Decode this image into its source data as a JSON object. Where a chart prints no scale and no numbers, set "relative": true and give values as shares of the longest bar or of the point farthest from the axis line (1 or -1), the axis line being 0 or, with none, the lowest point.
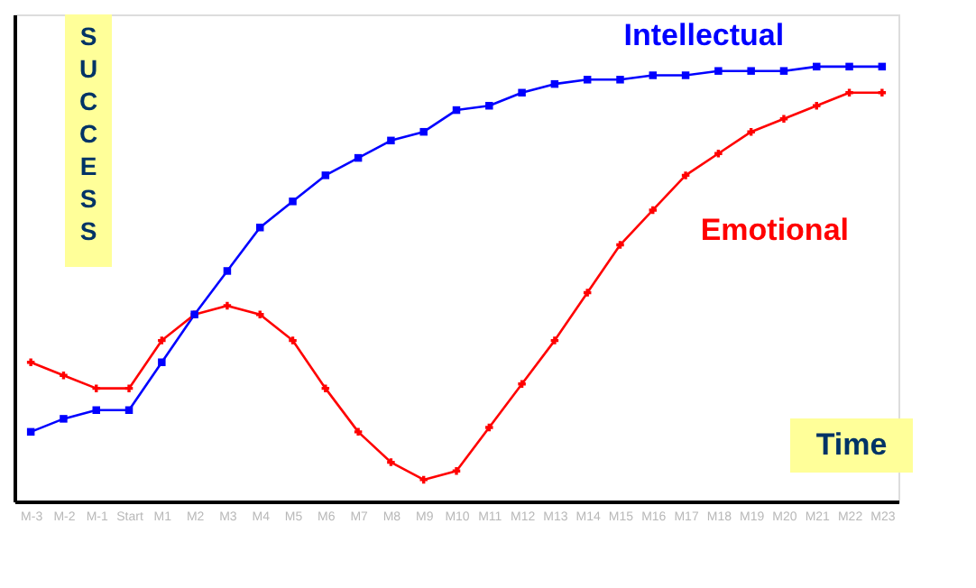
{
  "chart_data": {
    "type": "line",
    "relative": true,
    "xlabel": "Time",
    "ylabel": "SUCCESS",
    "categories": [
      "M-3",
      "M-2",
      "M-1",
      "Start",
      "M1",
      "M2",
      "M3",
      "M4",
      "M5",
      "M6",
      "M7",
      "M8",
      "M9",
      "M10",
      "M11",
      "M12",
      "M13",
      "M14",
      "M15",
      "M16",
      "M17",
      "M18",
      "M19",
      "M20",
      "M21",
      "M22",
      "M23"
    ],
    "series": [
      {
        "name": "Intellectual",
        "color": "#0000ff",
        "marker": "square",
        "values": [
          0.16,
          0.19,
          0.21,
          0.21,
          0.32,
          0.43,
          0.53,
          0.63,
          0.69,
          0.75,
          0.79,
          0.83,
          0.85,
          0.9,
          0.91,
          0.94,
          0.96,
          0.97,
          0.97,
          0.98,
          0.98,
          0.99,
          0.99,
          0.99,
          1.0,
          1.0,
          1.0
        ]
      },
      {
        "name": "Emotional",
        "color": "#ff0000",
        "marker": "cross",
        "values": [
          0.32,
          0.29,
          0.26,
          0.26,
          0.37,
          0.43,
          0.45,
          0.43,
          0.37,
          0.26,
          0.16,
          0.09,
          0.05,
          0.07,
          0.17,
          0.27,
          0.37,
          0.48,
          0.59,
          0.67,
          0.75,
          0.8,
          0.85,
          0.88,
          0.91,
          0.94,
          0.94
        ]
      }
    ],
    "grid": false,
    "legend": false,
    "line_style": "solid"
  }
}
